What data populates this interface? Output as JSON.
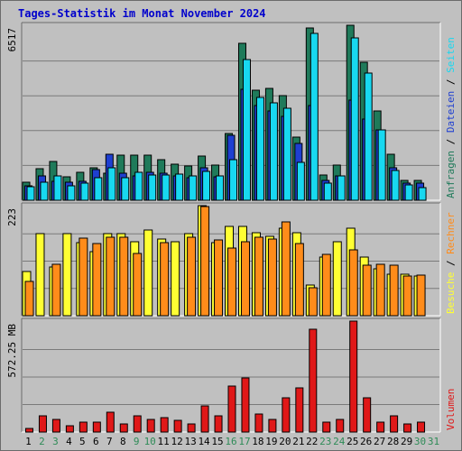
{
  "chart_data": {
    "type": "bar",
    "title": "Tages-Statistik im Monat November 2024",
    "x_labels": [
      "1",
      "2",
      "3",
      "4",
      "5",
      "6",
      "7",
      "8",
      "9",
      "10",
      "11",
      "12",
      "13",
      "14",
      "15",
      "16",
      "17",
      "18",
      "19",
      "20",
      "21",
      "22",
      "23",
      "24",
      "25",
      "26",
      "27",
      "28",
      "29",
      "30",
      "31"
    ],
    "weekend_days": [
      2,
      3,
      9,
      10,
      16,
      17,
      23,
      24,
      30,
      31
    ],
    "colors": {
      "weekday_label": "#000000",
      "weekend_label": "#2e8b57",
      "anfragen": "#1f7a5a",
      "dateien": "#1e3fd1",
      "seiten": "#18d8f0",
      "besuche": "#ffff33",
      "rechner": "#ff8c1a",
      "volumen": "#e01818",
      "axis_text": "#000000"
    },
    "panels": [
      {
        "name": "hits",
        "max_label": "6517",
        "right_label": [
          {
            "text": "Anfragen",
            "color": "#1f7a5a"
          },
          {
            "text": " / ",
            "color": "#000000"
          },
          {
            "text": "Dateien",
            "color": "#1e3fd1"
          },
          {
            "text": " / ",
            "color": "#000000"
          },
          {
            "text": "Seiten",
            "color": "#18d8f0"
          }
        ],
        "series": [
          {
            "name": "Anfragen",
            "values": [
              650,
              1150,
              1420,
              850,
              1040,
              1190,
              1000,
              1680,
              1650,
              1670,
              1500,
              1320,
              1280,
              1640,
              1310,
              2450,
              5800,
              4050,
              4120,
              3850,
              2320,
              6350,
              920,
              1310,
              6460,
              5100,
              3300,
              1700,
              720,
              740,
              0
            ],
            "color": "#1f7a5a"
          },
          {
            "name": "Dateien",
            "values": [
              520,
              900,
              700,
              650,
              690,
              1120,
              1700,
              1000,
              900,
              1020,
              1000,
              900,
              820,
              1200,
              870,
              2400,
              4100,
              3500,
              3300,
              3100,
              2100,
              3500,
              730,
              900,
              3700,
              3000,
              2600,
              1200,
              640,
              620,
              0
            ],
            "color": "#1e3fd1"
          },
          {
            "name": "Seiten",
            "values": [
              500,
              680,
              890,
              520,
              620,
              830,
              1200,
              830,
              1020,
              930,
              920,
              970,
              890,
              1050,
              890,
              1500,
              5200,
              3800,
              3600,
              3400,
              1400,
              6150,
              620,
              910,
              6000,
              4700,
              2600,
              1100,
              560,
              480,
              0
            ],
            "color": "#18d8f0"
          }
        ]
      },
      {
        "name": "visits",
        "max_label": "223",
        "right_label": [
          {
            "text": "Besuche",
            "color": "#ffff33"
          },
          {
            "text": " / ",
            "color": "#000000"
          },
          {
            "text": "Rechner",
            "color": "#ff8c1a"
          }
        ],
        "series": [
          {
            "name": "Besuche",
            "values": [
              90,
              165,
              98,
              166,
              148,
              130,
              166,
              165,
              150,
              172,
              155,
              150,
              166,
              222,
              148,
              180,
              180,
              167,
              160,
              176,
              168,
              62,
              118,
              150,
              176,
              118,
              94,
              84,
              84,
              80,
              0
            ],
            "color": "#ffff33"
          },
          {
            "name": "Rechner",
            "values": [
              70,
              0,
              103,
              0,
              157,
              145,
              158,
              159,
              126,
              0,
              147,
              0,
              158,
              220,
              152,
              136,
              150,
              158,
              155,
              190,
              145,
              57,
              123,
              0,
              132,
              101,
              103,
              102,
              80,
              82,
              0
            ],
            "color": "#ff8c1a"
          }
        ]
      },
      {
        "name": "volume",
        "max_label": "572.25 MB",
        "right_label": [
          {
            "text": "Volumen",
            "color": "#e01818"
          }
        ],
        "series": [
          {
            "name": "Volumen",
            "values": [
              10,
              50,
              40,
              20,
              30,
              30,
              60,
              25,
              50,
              40,
              45,
              35,
              25,
              80,
              50,
              140,
              165,
              55,
              40,
              105,
              135,
              315,
              30,
              40,
              340,
              105,
              30,
              50,
              25,
              30,
              0
            ],
            "color": "#e01818"
          }
        ]
      }
    ]
  }
}
